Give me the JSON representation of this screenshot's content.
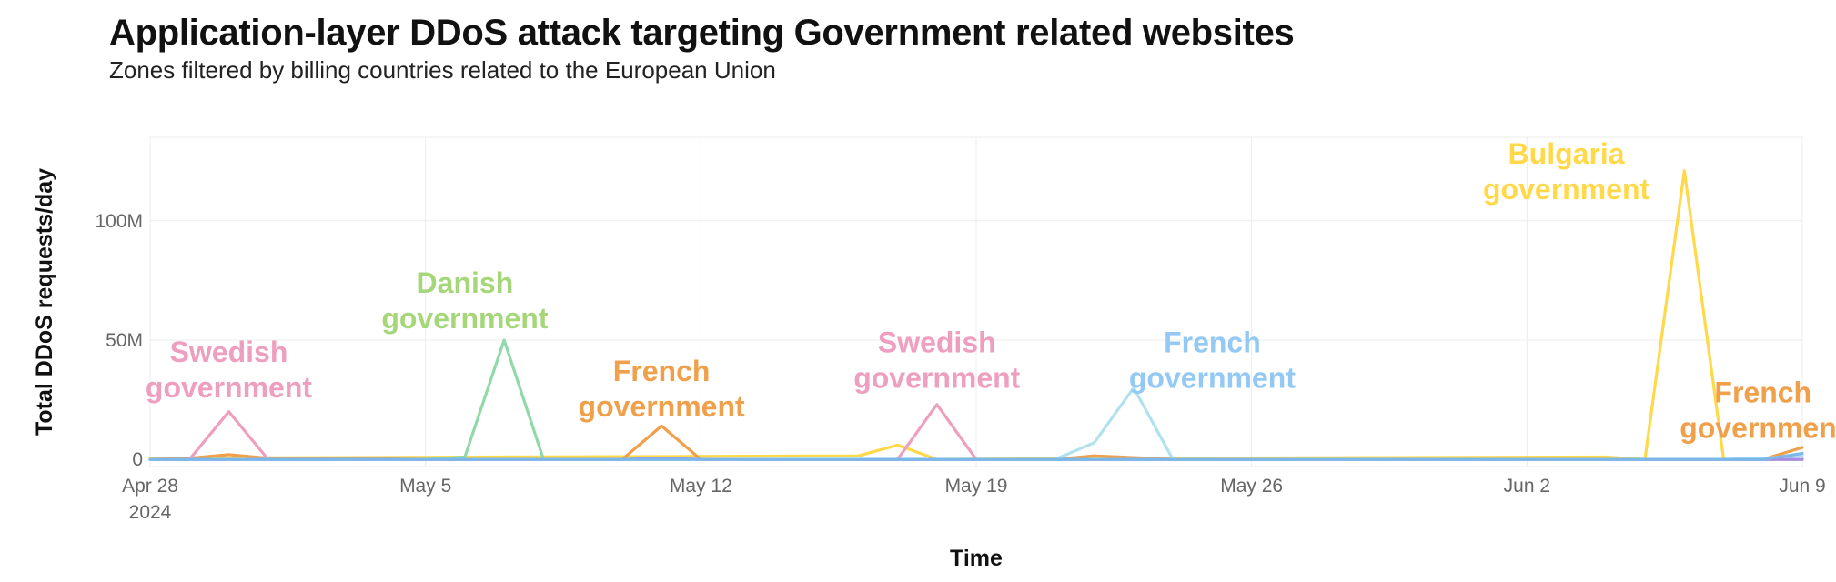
{
  "chart_data": {
    "type": "line",
    "title": "Application-layer DDoS attack targeting Government related websites",
    "subtitle": "Zones filtered by billing countries related to the European Union",
    "xlabel": "Time",
    "ylabel": "Total DDoS requests/day",
    "x_start": "2024-04-28",
    "x_end": "2024-06-09",
    "xlim": [
      "2024-04-28",
      "2024-06-09"
    ],
    "ylim": [
      -3000000,
      135000000
    ],
    "grid": true,
    "x_ticks": [
      {
        "date": "2024-04-28",
        "label": "Apr 28",
        "sublabel": "2024"
      },
      {
        "date": "2024-05-05",
        "label": "May 5"
      },
      {
        "date": "2024-05-12",
        "label": "May 12"
      },
      {
        "date": "2024-05-19",
        "label": "May 19"
      },
      {
        "date": "2024-05-26",
        "label": "May 26"
      },
      {
        "date": "2024-06-02",
        "label": "Jun 2"
      },
      {
        "date": "2024-06-09",
        "label": "Jun 9"
      }
    ],
    "y_ticks": [
      {
        "value": 0,
        "label": "0"
      },
      {
        "value": 50000000,
        "label": "50M"
      },
      {
        "value": 100000000,
        "label": "100M"
      }
    ],
    "series": [
      {
        "color": "#ffd94a",
        "values": [
          {
            "date": "2024-04-28",
            "value": 500000
          },
          {
            "date": "2024-05-16",
            "value": 1500000
          },
          {
            "date": "2024-05-17",
            "value": 6000000
          },
          {
            "date": "2024-05-18",
            "value": 0
          },
          {
            "date": "2024-05-23",
            "value": 500000
          },
          {
            "date": "2024-06-04",
            "value": 1000000
          },
          {
            "date": "2024-06-05",
            "value": 0
          },
          {
            "date": "2024-06-06",
            "value": 121000000
          },
          {
            "date": "2024-06-07",
            "value": 0
          },
          {
            "date": "2024-06-09",
            "value": 0
          }
        ]
      },
      {
        "color": "#f0a04b",
        "values": [
          {
            "date": "2024-04-28",
            "value": 0
          },
          {
            "date": "2024-04-29",
            "value": 500000
          },
          {
            "date": "2024-04-30",
            "value": 2000000
          },
          {
            "date": "2024-05-01",
            "value": 500000
          },
          {
            "date": "2024-05-03",
            "value": 500000
          },
          {
            "date": "2024-05-05",
            "value": 0
          },
          {
            "date": "2024-05-10",
            "value": 0
          },
          {
            "date": "2024-05-11",
            "value": 14000000
          },
          {
            "date": "2024-05-12",
            "value": 0
          },
          {
            "date": "2024-05-21",
            "value": 0
          },
          {
            "date": "2024-05-22",
            "value": 1500000
          },
          {
            "date": "2024-05-24",
            "value": 0
          },
          {
            "date": "2024-06-08",
            "value": 0
          },
          {
            "date": "2024-06-09",
            "value": 5000000
          }
        ]
      },
      {
        "color": "#ee9fbf",
        "values": [
          {
            "date": "2024-04-28",
            "value": 0
          },
          {
            "date": "2024-04-29",
            "value": 0
          },
          {
            "date": "2024-04-30",
            "value": 20000000
          },
          {
            "date": "2024-05-01",
            "value": 0
          },
          {
            "date": "2024-05-17",
            "value": 0
          },
          {
            "date": "2024-05-18",
            "value": 23000000
          },
          {
            "date": "2024-05-19",
            "value": 0
          },
          {
            "date": "2024-06-09",
            "value": 0
          }
        ]
      },
      {
        "color": "#8fdaa8",
        "values": [
          {
            "date": "2024-04-28",
            "value": 0
          },
          {
            "date": "2024-05-05",
            "value": 0
          },
          {
            "date": "2024-05-06",
            "value": 1000000
          },
          {
            "date": "2024-05-07",
            "value": 50000000
          },
          {
            "date": "2024-05-08",
            "value": 0
          },
          {
            "date": "2024-06-09",
            "value": 0
          }
        ]
      },
      {
        "color": "#b0e2ee",
        "values": [
          {
            "date": "2024-04-28",
            "value": 0
          },
          {
            "date": "2024-05-21",
            "value": 0
          },
          {
            "date": "2024-05-22",
            "value": 7000000
          },
          {
            "date": "2024-05-23",
            "value": 30000000
          },
          {
            "date": "2024-05-24",
            "value": 0
          },
          {
            "date": "2024-06-07",
            "value": 0
          },
          {
            "date": "2024-06-08",
            "value": 500000
          },
          {
            "date": "2024-06-09",
            "value": 1500000
          }
        ]
      },
      {
        "color": "#a98ae6",
        "values": [
          {
            "date": "2024-04-28",
            "value": 0
          },
          {
            "date": "2024-05-10",
            "value": 0
          },
          {
            "date": "2024-05-11",
            "value": 500000
          },
          {
            "date": "2024-05-12",
            "value": 0
          },
          {
            "date": "2024-06-09",
            "value": 0
          }
        ]
      },
      {
        "color": "#7ab8ec",
        "values": [
          {
            "date": "2024-04-28",
            "value": 0
          },
          {
            "date": "2024-06-08",
            "value": 0
          },
          {
            "date": "2024-06-09",
            "value": 2500000
          }
        ]
      }
    ],
    "annotations": [
      {
        "lines": [
          "Swedish",
          "government"
        ],
        "color": "#ee9fbf",
        "date": "2024-04-30",
        "value": 26000000,
        "dy": 0
      },
      {
        "lines": [
          "Danish",
          "government"
        ],
        "color": "#a5d77a",
        "date": "2024-05-06",
        "value": 55000000,
        "dy": 0
      },
      {
        "lines": [
          "French",
          "government"
        ],
        "color": "#f0a04b",
        "date": "2024-05-11",
        "value": 18000000,
        "dy": 0
      },
      {
        "lines": [
          "Swedish",
          "government"
        ],
        "color": "#ee9fbf",
        "date": "2024-05-18",
        "value": 30000000,
        "dy": 0
      },
      {
        "lines": [
          "French",
          "government"
        ],
        "color": "#94c9f5",
        "date": "2024-05-25",
        "value": 30000000,
        "dy": 0
      },
      {
        "lines": [
          "Bulgaria",
          "government"
        ],
        "color": "#ffd94a",
        "date": "2024-06-03",
        "value": 109000000,
        "dy": 0
      },
      {
        "lines": [
          "French",
          "government"
        ],
        "color": "#f0a04b",
        "date": "2024-06-08",
        "value": 9000000,
        "dy": 0
      }
    ]
  }
}
